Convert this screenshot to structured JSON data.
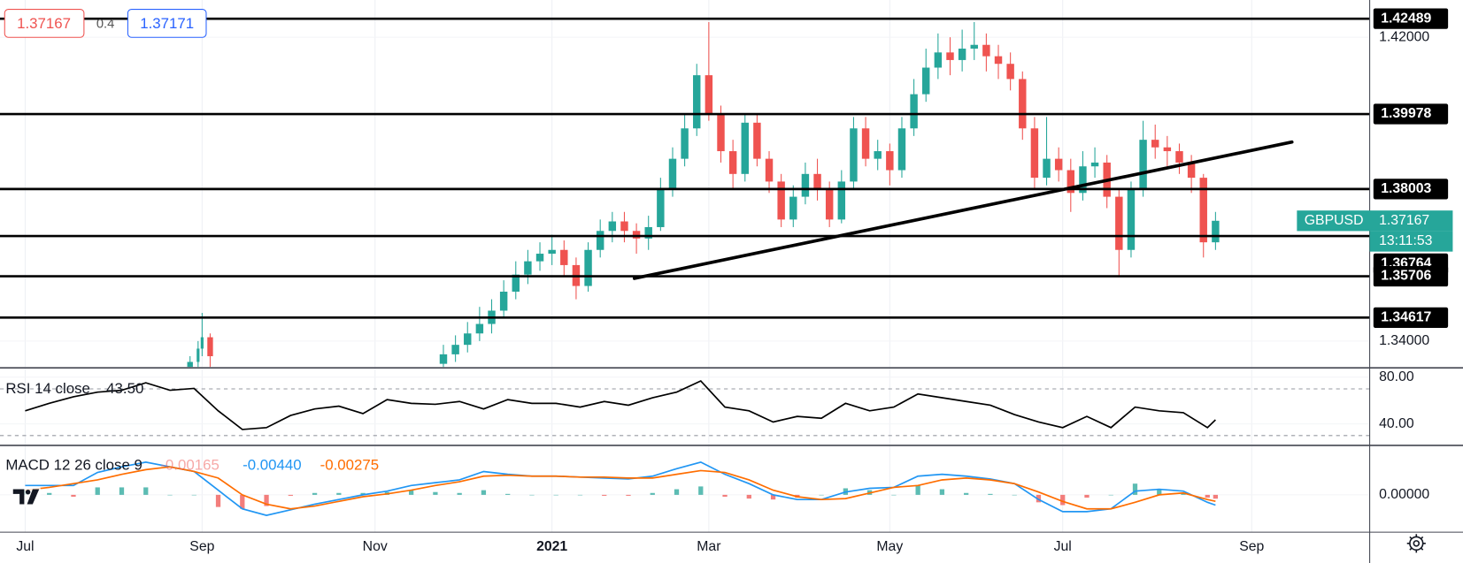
{
  "ui": {
    "trade_buttons": {
      "sell": 1.37167,
      "spread": 0.4,
      "buy": 1.37171
    }
  },
  "chart_data": [
    {
      "type": "candlestick",
      "symbol": "GBPUSD",
      "last_price": 1.37167,
      "countdown": "13:11:53",
      "up_color": "#26a69a",
      "down_color": "#ef5350",
      "level_color": "#000000",
      "grid": true,
      "xlim": [
        -6.26,
        334.34
      ],
      "xticks": [
        {
          "value": 0,
          "label": "Jul"
        },
        {
          "value": 44,
          "label": "Sep"
        },
        {
          "value": 87,
          "label": "Nov"
        },
        {
          "value": 131,
          "label": "2021"
        },
        {
          "value": 170,
          "label": "Mar"
        },
        {
          "value": 215,
          "label": "May"
        },
        {
          "value": 258,
          "label": "Jul"
        },
        {
          "value": 305,
          "label": "Sep"
        }
      ],
      "ylim": [
        1.33318,
        1.42981
      ],
      "yticks": [
        {
          "value": 1.42,
          "label": "1.42000"
        },
        {
          "value": 1.34,
          "label": "1.34000"
        }
      ],
      "levels": [
        1.42489,
        1.39978,
        1.38003,
        1.36764,
        1.35706,
        1.34617
      ],
      "trendline": {
        "x": [
          151.5,
          315
        ],
        "values": [
          1.3565,
          1.3924
        ]
      },
      "x": [
        41,
        43,
        44,
        46,
        104,
        107,
        110,
        113,
        116,
        119,
        122,
        125,
        128,
        131,
        134,
        137,
        140,
        143,
        146,
        149,
        152,
        155,
        158,
        161,
        164,
        167,
        170,
        173,
        176,
        179,
        182,
        185,
        188,
        191,
        194,
        197,
        200,
        203,
        206,
        209,
        212,
        215,
        218,
        221,
        224,
        227,
        230,
        233,
        236,
        239,
        242,
        245,
        248,
        251,
        254,
        257,
        260,
        263,
        266,
        269,
        272,
        275,
        278,
        281,
        284,
        287,
        290,
        293,
        296
      ],
      "open": [
        1.333,
        1.3345,
        1.338,
        1.341,
        1.334,
        1.3365,
        1.339,
        1.342,
        1.3445,
        1.348,
        1.353,
        1.3575,
        1.361,
        1.363,
        1.364,
        1.36,
        1.3545,
        1.364,
        1.369,
        1.3715,
        1.369,
        1.367,
        1.37,
        1.38,
        1.388,
        1.396,
        1.41,
        1.4,
        1.39,
        1.384,
        1.3975,
        1.388,
        1.382,
        1.372,
        1.378,
        1.384,
        1.38,
        1.372,
        1.382,
        1.396,
        1.388,
        1.39,
        1.385,
        1.396,
        1.405,
        1.412,
        1.416,
        1.414,
        1.417,
        1.418,
        1.415,
        1.413,
        1.409,
        1.396,
        1.383,
        1.388,
        1.385,
        1.379,
        1.386,
        1.387,
        1.378,
        1.364,
        1.38,
        1.393,
        1.391,
        1.39,
        1.387,
        1.383,
        1.366
      ],
      "high": [
        1.336,
        1.34,
        1.3474,
        1.342,
        1.339,
        1.3415,
        1.345,
        1.349,
        1.351,
        1.356,
        1.361,
        1.364,
        1.366,
        1.368,
        1.3665,
        1.362,
        1.366,
        1.372,
        1.374,
        1.374,
        1.371,
        1.373,
        1.383,
        1.391,
        1.4,
        1.413,
        1.424,
        1.402,
        1.393,
        1.4,
        1.4,
        1.39,
        1.384,
        1.381,
        1.387,
        1.388,
        1.382,
        1.385,
        1.399,
        1.399,
        1.393,
        1.392,
        1.399,
        1.409,
        1.417,
        1.421,
        1.42,
        1.422,
        1.424,
        1.421,
        1.418,
        1.416,
        1.411,
        1.399,
        1.399,
        1.391,
        1.388,
        1.39,
        1.391,
        1.389,
        1.38,
        1.382,
        1.398,
        1.397,
        1.394,
        1.392,
        1.389,
        1.384,
        1.374
      ],
      "low": [
        1.331,
        1.333,
        1.336,
        1.332,
        1.332,
        1.3345,
        1.337,
        1.34,
        1.342,
        1.346,
        1.351,
        1.355,
        1.3585,
        1.36,
        1.357,
        1.351,
        1.353,
        1.362,
        1.366,
        1.366,
        1.363,
        1.364,
        1.369,
        1.378,
        1.386,
        1.394,
        1.398,
        1.387,
        1.38,
        1.382,
        1.386,
        1.379,
        1.37,
        1.37,
        1.376,
        1.377,
        1.37,
        1.371,
        1.38,
        1.386,
        1.385,
        1.381,
        1.383,
        1.394,
        1.403,
        1.409,
        1.41,
        1.411,
        1.414,
        1.411,
        1.409,
        1.406,
        1.393,
        1.38,
        1.381,
        1.382,
        1.374,
        1.377,
        1.383,
        1.375,
        1.357,
        1.362,
        1.378,
        1.388,
        1.386,
        1.384,
        1.379,
        1.362,
        1.364
      ],
      "close": [
        1.3345,
        1.338,
        1.341,
        1.336,
        1.3365,
        1.339,
        1.342,
        1.3445,
        1.348,
        1.353,
        1.3575,
        1.361,
        1.363,
        1.364,
        1.36,
        1.3545,
        1.364,
        1.369,
        1.3715,
        1.369,
        1.367,
        1.37,
        1.38,
        1.388,
        1.396,
        1.41,
        1.4,
        1.39,
        1.384,
        1.3975,
        1.388,
        1.382,
        1.372,
        1.378,
        1.384,
        1.38,
        1.372,
        1.382,
        1.396,
        1.388,
        1.39,
        1.385,
        1.396,
        1.405,
        1.412,
        1.416,
        1.414,
        1.417,
        1.418,
        1.415,
        1.413,
        1.409,
        1.396,
        1.383,
        1.388,
        1.385,
        1.379,
        1.386,
        1.387,
        1.378,
        1.364,
        1.38,
        1.393,
        1.391,
        1.39,
        1.387,
        1.383,
        1.366,
        1.37167
      ]
    },
    {
      "type": "line",
      "title": "RSI 14 close",
      "last_label": "43.50",
      "color": "#000000",
      "xlim": [
        -6.26,
        334.34
      ],
      "ylim": [
        22.4,
        87.2
      ],
      "yticks": [
        {
          "value": 80,
          "label": "80.00"
        },
        {
          "value": 40,
          "label": "40.00"
        }
      ],
      "bands": [
        70,
        30
      ],
      "x": [
        0,
        6,
        12,
        18,
        24,
        30,
        36,
        42,
        48,
        54,
        60,
        66,
        72,
        78,
        84,
        90,
        96,
        102,
        108,
        114,
        120,
        126,
        132,
        138,
        144,
        150,
        156,
        162,
        168,
        174,
        180,
        186,
        192,
        198,
        204,
        210,
        216,
        222,
        228,
        234,
        240,
        246,
        252,
        258,
        264,
        270,
        276,
        282,
        288,
        294,
        296
      ],
      "values": [
        51.2,
        57.6,
        63.2,
        67.2,
        68.8,
        75.2,
        68.8,
        70.4,
        51.2,
        35.2,
        36.8,
        47.2,
        52.8,
        55.2,
        48.8,
        60.8,
        57.6,
        56.8,
        59.2,
        52.8,
        60.8,
        57.6,
        57.6,
        54.4,
        59.2,
        56,
        62.4,
        67.2,
        76.8,
        54.4,
        51.2,
        41.6,
        46.4,
        44.8,
        57.6,
        51.2,
        54.4,
        65.6,
        62.4,
        59.2,
        56,
        48,
        41.6,
        36.8,
        46.4,
        36.8,
        54.4,
        51.2,
        49.6,
        36.8,
        43.5
      ]
    },
    {
      "type": "macd",
      "title": "MACD 12 26 close 9",
      "xlim": [
        -6.26,
        334.34
      ],
      "ylim": [
        -0.016,
        0.0208
      ],
      "yticks": [
        {
          "value": 0,
          "label": "0.00000"
        }
      ],
      "x": [
        0,
        6,
        12,
        18,
        24,
        30,
        36,
        42,
        48,
        54,
        60,
        66,
        72,
        78,
        84,
        90,
        96,
        102,
        108,
        114,
        120,
        126,
        132,
        138,
        144,
        150,
        156,
        162,
        168,
        174,
        180,
        186,
        192,
        198,
        204,
        210,
        216,
        222,
        228,
        234,
        240,
        246,
        252,
        258,
        264,
        270,
        276,
        282,
        288,
        294,
        296
      ],
      "histogram": {
        "up_color": "#26a69a",
        "down_color": "#ef5350",
        "last_label": "-0.00165",
        "values": [
          0.002,
          0.0008,
          -0.0008,
          0.0032,
          0.0032,
          0.0032,
          0,
          0,
          -0.0052,
          -0.006,
          -0.0048,
          -0.0004,
          0.0008,
          0.0008,
          0.0008,
          0.0012,
          0.002,
          0.0012,
          0.0008,
          0.002,
          0.0004,
          0,
          0,
          0,
          -0.0004,
          -0.0004,
          0.0008,
          0.0024,
          0.0036,
          -0.0008,
          -0.0016,
          -0.002,
          -0.0012,
          0,
          0.0028,
          0.002,
          0,
          0.004,
          0.0024,
          0.0008,
          0.0004,
          0,
          -0.0032,
          -0.0044,
          -0.0012,
          0,
          0.0048,
          0.0024,
          0.0008,
          -0.0012,
          -0.00165
        ]
      },
      "series": [
        {
          "color": "#2196f3",
          "last_label": "-0.00440",
          "values": [
            0.004,
            0.004,
            0.004,
            0.0096,
            0.012,
            0.014,
            0.012,
            0.01,
            0.002,
            -0.006,
            -0.0088,
            -0.0064,
            -0.004,
            -0.002,
            0,
            0.0016,
            0.004,
            0.0052,
            0.0064,
            0.01,
            0.0088,
            0.008,
            0.008,
            0.0076,
            0.0072,
            0.0068,
            0.008,
            0.0112,
            0.014,
            0.0088,
            0.0048,
            0,
            -0.002,
            -0.002,
            0.0012,
            0.0028,
            0.0032,
            0.008,
            0.0088,
            0.008,
            0.0068,
            0.0048,
            -0.002,
            -0.0072,
            -0.0072,
            -0.006,
            0.0016,
            0.0024,
            0.0016,
            -0.0032,
            -0.0044
          ]
        },
        {
          "color": "#ff6d00",
          "last_label": "-0.00275",
          "values": [
            0.002,
            0.0032,
            0.0048,
            0.0064,
            0.0088,
            0.0108,
            0.012,
            0.01,
            0.0072,
            0,
            -0.004,
            -0.006,
            -0.0048,
            -0.0028,
            -0.0008,
            0.0004,
            0.002,
            0.004,
            0.0056,
            0.008,
            0.0084,
            0.008,
            0.008,
            0.0076,
            0.0076,
            0.0072,
            0.0072,
            0.0088,
            0.0104,
            0.0096,
            0.0064,
            0.002,
            -0.0008,
            -0.002,
            -0.0016,
            0.0008,
            0.0032,
            0.004,
            0.0064,
            0.0072,
            0.0064,
            0.0048,
            0.0012,
            -0.0028,
            -0.006,
            -0.006,
            -0.0032,
            0,
            0.0008,
            -0.002,
            -0.00275
          ]
        }
      ]
    }
  ]
}
